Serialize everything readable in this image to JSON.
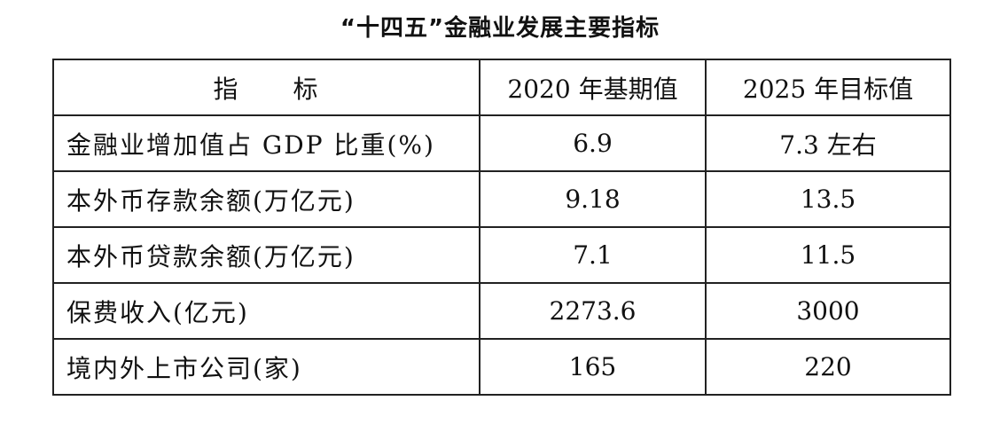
{
  "title": "“十四五”金融业发展主要指标",
  "table": {
    "headers": [
      "指　　标",
      "2020 年基期值",
      "2025 年目标值"
    ],
    "rows": [
      {
        "indicator": "金融业增加值占 GDP 比重(%)",
        "base_2020": "6.9",
        "target_2025": "7.3 左右"
      },
      {
        "indicator": "本外币存款余额(万亿元)",
        "base_2020": "9.18",
        "target_2025": "13.5"
      },
      {
        "indicator": "本外币贷款余额(万亿元)",
        "base_2020": "7.1",
        "target_2025": "11.5"
      },
      {
        "indicator": "保费收入(亿元)",
        "base_2020": "2273.6",
        "target_2025": "3000"
      },
      {
        "indicator": "境内外上市公司(家)",
        "base_2020": "165",
        "target_2025": "220"
      }
    ]
  }
}
